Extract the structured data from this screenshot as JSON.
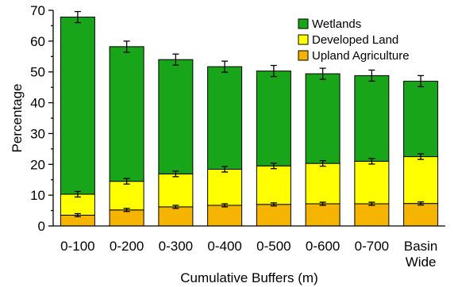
{
  "chart_data": {
    "type": "bar",
    "stacked": true,
    "categories": [
      [
        "0-100"
      ],
      [
        "0-200"
      ],
      [
        "0-300"
      ],
      [
        "0-400"
      ],
      [
        "0-500"
      ],
      [
        "0-600"
      ],
      [
        "0-700"
      ],
      [
        "Basin",
        "Wide"
      ]
    ],
    "series": [
      {
        "name": "Upland Agriculture",
        "color": "#f5b400",
        "values": [
          3.5,
          5.2,
          6.2,
          6.7,
          7.0,
          7.2,
          7.2,
          7.3
        ],
        "error": [
          0.5,
          0.5,
          0.5,
          0.5,
          0.5,
          0.5,
          0.5,
          0.5
        ]
      },
      {
        "name": "Developed Land",
        "color": "#ffff00",
        "values": [
          6.8,
          9.3,
          10.7,
          11.7,
          12.5,
          13.1,
          13.8,
          15.2
        ],
        "error": [
          0.9,
          0.9,
          0.9,
          0.9,
          0.9,
          0.9,
          0.9,
          0.9
        ]
      },
      {
        "name": "Wetlands",
        "color": "#19a519",
        "values": [
          57.5,
          43.7,
          37.1,
          33.3,
          30.8,
          29.1,
          27.8,
          24.5
        ],
        "error": [
          1.8,
          1.8,
          1.8,
          1.8,
          1.8,
          1.8,
          1.8,
          1.8
        ]
      }
    ],
    "xlabel": "Cumulative Buffers (m)",
    "ylabel": "Percentage",
    "ylim": [
      0,
      70
    ],
    "yticks": [
      0,
      10,
      20,
      30,
      40,
      50,
      60,
      70
    ],
    "grid": false,
    "legend": {
      "position": "top-right",
      "order": [
        "Wetlands",
        "Developed Land",
        "Upland Agriculture"
      ]
    }
  }
}
